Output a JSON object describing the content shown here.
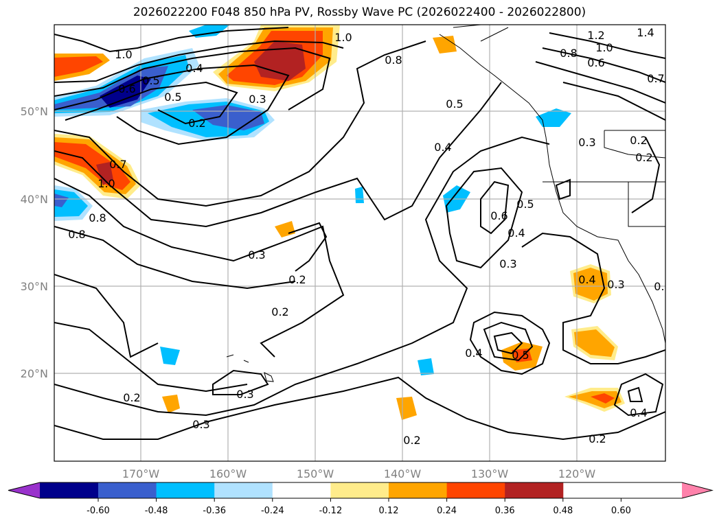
{
  "title": "2026022200 F048 850 hPa PV, Rossby Wave PC (2026022400 - 2026022800)",
  "map": {
    "lat_labels": [
      "50°N",
      "40°N",
      "30°N",
      "20°N"
    ],
    "lon_labels": [
      "170°W",
      "160°W",
      "150°W",
      "140°W",
      "130°W",
      "120°W"
    ],
    "contour_labels": [
      "1.0",
      "1.0",
      "0.4",
      "0.5",
      "0.6",
      "0.2",
      "0.3",
      "0.7",
      "1.0",
      "0.8",
      "0.8",
      "0.5",
      "0.4",
      "0.3",
      "0.2",
      "0.3",
      "0.2",
      "0.2",
      "0.6",
      "0.5",
      "0.4",
      "0.3",
      "0.4",
      "0.3",
      "0.4",
      "0.5",
      "0.2",
      "0.3",
      "0.2",
      "0.2",
      "0.4",
      "0.2",
      "1.4",
      "1.2",
      "1.0",
      "0.8",
      "0.6",
      "0.7",
      "0.3",
      "0.2",
      "0.8",
      "0.5"
    ]
  },
  "colorbar": {
    "colors": [
      "#9932cc",
      "#00008b",
      "#3a5fcd",
      "#00bfff",
      "#b0e2ff",
      "#ffffff",
      "#ffec8b",
      "#ffa500",
      "#ff4500",
      "#b22222",
      "#ff82ab"
    ],
    "tick_labels": [
      "-0.60",
      "-0.48",
      "-0.36",
      "-0.24",
      "-0.12",
      "0.12",
      "0.24",
      "0.36",
      "0.48",
      "0.60"
    ]
  }
}
